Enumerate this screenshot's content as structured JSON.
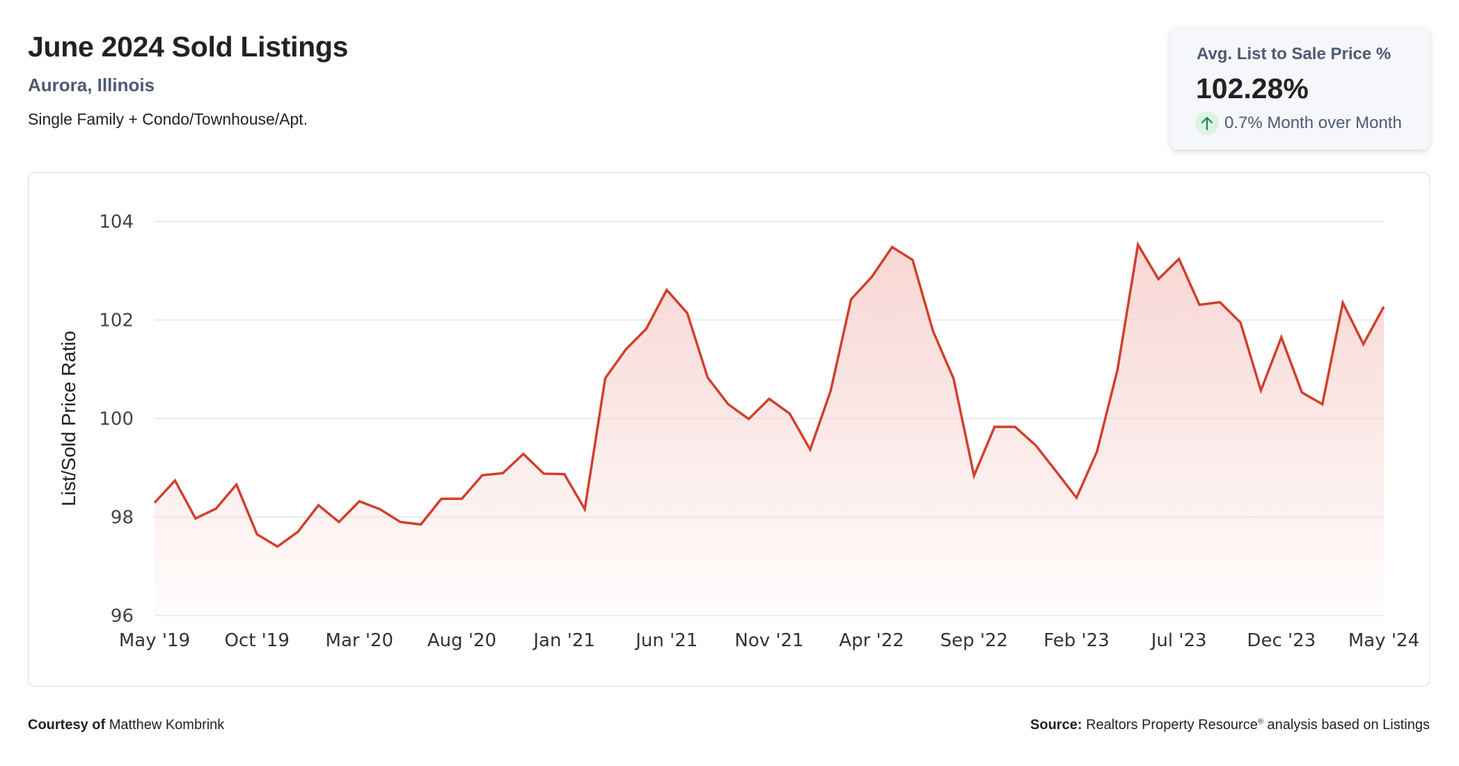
{
  "header": {
    "title": "June 2024 Sold Listings",
    "location": "Aurora, Illinois",
    "property_type": "Single Family + Condo/Townhouse/Apt."
  },
  "stat_card": {
    "label": "Avg. List to Sale Price %",
    "value": "102.28%",
    "change_icon": "arrow-up-icon",
    "change_text": "0.7% Month over Month",
    "change_color": "#1e8a4c",
    "change_bg": "#dcf3e4"
  },
  "footer": {
    "courtesy_label": "Courtesy of",
    "courtesy_name": "Matthew Kombrink",
    "source_label": "Source:",
    "source_text": "Realtors Property Resource",
    "source_mark": "®",
    "source_suffix": " analysis based on Listings"
  },
  "colors": {
    "line": "#d0402c",
    "fill_top": "#f6cfcb",
    "grid": "#e3e6ea",
    "axis_text": "#444444"
  },
  "chart_data": {
    "type": "area",
    "title": "June 2024 Sold Listings",
    "xlabel": "",
    "ylabel": "List/Sold Price Ratio",
    "ylim": [
      96,
      104
    ],
    "yticks": [
      96,
      98,
      100,
      102,
      104
    ],
    "grid": true,
    "legend": null,
    "xtick_labels": [
      "May '19",
      "Oct '19",
      "Mar '20",
      "Aug '20",
      "Jan '21",
      "Jun '21",
      "Nov '21",
      "Apr '22",
      "Sep '22",
      "Feb '23",
      "Jul '23",
      "Dec '23",
      "May '24"
    ],
    "xtick_every": 5,
    "x": [
      "May '19",
      "Jun '19",
      "Jul '19",
      "Aug '19",
      "Sep '19",
      "Oct '19",
      "Nov '19",
      "Dec '19",
      "Jan '20",
      "Feb '20",
      "Mar '20",
      "Apr '20",
      "May '20",
      "Jun '20",
      "Jul '20",
      "Aug '20",
      "Sep '20",
      "Oct '20",
      "Nov '20",
      "Dec '20",
      "Jan '21",
      "Feb '21",
      "Mar '21",
      "Apr '21",
      "May '21",
      "Jun '21",
      "Jul '21",
      "Aug '21",
      "Sep '21",
      "Oct '21",
      "Nov '21",
      "Dec '21",
      "Jan '22",
      "Feb '22",
      "Mar '22",
      "Apr '22",
      "May '22",
      "Jun '22",
      "Jul '22",
      "Aug '22",
      "Sep '22",
      "Oct '22",
      "Nov '22",
      "Dec '22",
      "Jan '23",
      "Feb '23",
      "Mar '23",
      "Apr '23",
      "May '23",
      "Jun '23",
      "Jul '23",
      "Aug '23",
      "Sep '23",
      "Oct '23",
      "Nov '23",
      "Dec '23",
      "Jan '24",
      "Feb '24",
      "Mar '24",
      "Apr '24",
      "May '24"
    ],
    "series": [
      {
        "name": "List/Sold Price Ratio",
        "values": [
          98.29,
          98.74,
          97.97,
          98.17,
          98.66,
          97.65,
          97.4,
          97.7,
          98.24,
          97.9,
          98.32,
          98.16,
          97.9,
          97.85,
          98.37,
          98.37,
          98.85,
          98.89,
          99.28,
          98.88,
          98.87,
          98.16,
          100.82,
          101.4,
          101.82,
          102.61,
          102.14,
          100.83,
          100.29,
          99.99,
          100.4,
          100.1,
          99.37,
          100.56,
          102.42,
          102.87,
          103.48,
          103.22,
          101.77,
          100.81,
          98.84,
          99.83,
          99.83,
          99.46,
          98.93,
          98.39,
          99.33,
          100.99,
          103.53,
          102.83,
          103.24,
          102.31,
          102.36,
          101.95,
          100.57,
          101.65,
          100.53,
          100.29,
          102.35,
          101.51,
          102.27
        ]
      }
    ]
  }
}
